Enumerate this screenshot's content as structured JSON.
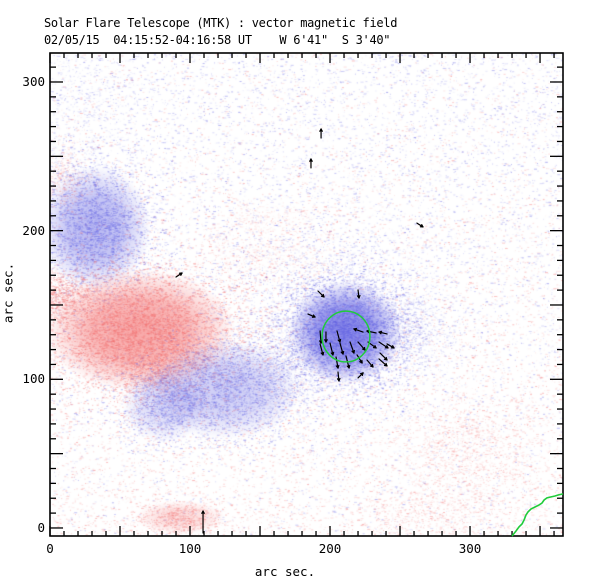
{
  "header": {
    "title": "Solar Flare Telescope (MTK) : vector magnetic field",
    "subtitle": "02/05/15  04:15:52-04:16:58 UT    W 6'41\"  S 3'40\""
  },
  "chart_data": {
    "type": "heatmap",
    "description": "Solar vector magnetogram: blue speckle = negative polarity flux, red speckle = positive polarity flux, black arrows = transverse field vectors, green circle = contour of interest, green line at lower right = solar limb",
    "title": "Solar Flare Telescope (MTK) : vector magnetic field",
    "xlabel": "arc sec.",
    "ylabel": "arc sec.",
    "xlim": [
      0,
      366.4
    ],
    "ylim": [
      -5.4,
      319.5
    ],
    "xticks": [
      0,
      100,
      200,
      300
    ],
    "yticks": [
      0,
      100,
      200,
      300
    ],
    "minor_tick_arcsec": 10,
    "major_tick_arcsec": 50,
    "grid": false,
    "legend": "none",
    "colors": {
      "negative_polarity_blue": "#5858e1",
      "positive_polarity_red": "#f25f5f",
      "contour_green": "#20cc3a",
      "vector_black": "#000000",
      "frame_black": "#000000",
      "background": "#ffffff"
    },
    "noise": {
      "blue_count": 14000,
      "red_count": 17000,
      "blue_tone_strong": "100,100,228",
      "blue_tone_light": "165,165,240",
      "red_tone_strong": "243,112,112",
      "red_tone_light": "250,175,175"
    },
    "polarity_blobs": [
      {
        "name": "blue-plage-northwest",
        "color": "blue",
        "x": 32,
        "y": 202,
        "sx": 21,
        "sy": 22,
        "n": 2600,
        "a": 0.5,
        "core": 0.42
      },
      {
        "name": "red-spot-main",
        "color": "red",
        "x": 64,
        "y": 133,
        "sx": 36,
        "sy": 21.5,
        "n": 5200,
        "a": 0.55,
        "core": 0.55
      },
      {
        "name": "red-arm-west",
        "color": "red",
        "x": 4,
        "y": 157,
        "sx": 14,
        "sy": 8,
        "n": 1100,
        "a": 0.45,
        "core": 0
      },
      {
        "name": "red-edge-west-upper",
        "color": "red",
        "x": 8,
        "y": 235,
        "sx": 9,
        "sy": 12,
        "n": 420,
        "a": 0.28,
        "core": 0
      },
      {
        "name": "red-tail-south",
        "color": "red",
        "x": 75,
        "y": 105,
        "sx": 18,
        "sy": 9.5,
        "n": 1000,
        "a": 0.32,
        "core": 0
      },
      {
        "name": "blue-region-south-central",
        "color": "blue",
        "x": 125,
        "y": 93,
        "sx": 28.5,
        "sy": 17.5,
        "n": 2200,
        "a": 0.45,
        "core": 0.3
      },
      {
        "name": "blue-region-south-central-2",
        "color": "blue",
        "x": 82,
        "y": 83,
        "sx": 16,
        "sy": 13.5,
        "n": 900,
        "a": 0.42,
        "core": 0.22
      },
      {
        "name": "blue-spot-core",
        "color": "blue",
        "x": 210.7,
        "y": 131.8,
        "sx": 21.4,
        "sy": 18.2,
        "n": 3400,
        "a": 0.6,
        "core": 0.72
      },
      {
        "name": "blue-spot-envelope",
        "color": "blue",
        "x": 205,
        "y": 142,
        "sx": 39,
        "sy": 28,
        "n": 2400,
        "a": 0.28,
        "core": 0
      },
      {
        "name": "blue-ext-east",
        "color": "blue",
        "x": 246,
        "y": 132,
        "sx": 20,
        "sy": 14,
        "n": 800,
        "a": 0.26,
        "core": 0
      },
      {
        "name": "blue-bridge-south",
        "color": "blue",
        "x": 164,
        "y": 105,
        "sx": 25,
        "sy": 14,
        "n": 900,
        "a": 0.28,
        "core": 0
      },
      {
        "name": "red-streak-central",
        "color": "red",
        "x": 154,
        "y": 184,
        "sx": 32,
        "sy": 9,
        "n": 520,
        "a": 0.2,
        "core": 0
      },
      {
        "name": "red-streak-central-2",
        "color": "red",
        "x": 156,
        "y": 208,
        "sx": 21,
        "sy": 6,
        "n": 300,
        "a": 0.16,
        "core": 0
      },
      {
        "name": "red-scatter-southeast",
        "color": "red",
        "x": 296,
        "y": 52,
        "sx": 27,
        "sy": 17,
        "n": 950,
        "a": 0.25,
        "core": 0
      },
      {
        "name": "red-patch-south",
        "color": "red",
        "x": 93,
        "y": 7,
        "sx": 17,
        "sy": 6,
        "n": 620,
        "a": 0.4,
        "core": 0.22
      },
      {
        "name": "red-band-south-east",
        "color": "red",
        "x": 275,
        "y": 9,
        "sx": 32,
        "sy": 9.5,
        "n": 550,
        "a": 0.25,
        "core": 0
      },
      {
        "name": "blue-corner-northwest",
        "color": "blue",
        "x": 21,
        "y": 281,
        "sx": 30,
        "sy": 27,
        "n": 650,
        "a": 0.18,
        "core": 0
      }
    ],
    "contour_circle": {
      "x": 211.4,
      "y": 128.8,
      "r": 17.1
    },
    "vectors": [
      [
        191.4,
        159.4,
        195.7,
        155.4
      ],
      [
        220.0,
        160.1,
        220.7,
        154.7
      ],
      [
        184.3,
        143.9,
        189.3,
        141.9
      ],
      [
        192.9,
        132.5,
        193.6,
        124.4
      ],
      [
        197.1,
        131.8,
        197.1,
        125.1
      ],
      [
        205.0,
        132.5,
        207.1,
        125.1
      ],
      [
        223.6,
        131.8,
        217.1,
        133.9
      ],
      [
        232.9,
        131.2,
        226.4,
        132.5
      ],
      [
        240.7,
        130.5,
        235.0,
        131.8
      ],
      [
        192.9,
        123.8,
        195.0,
        116.4
      ],
      [
        200.0,
        124.4,
        202.1,
        116.4
      ],
      [
        207.1,
        124.4,
        209.3,
        117.0
      ],
      [
        214.3,
        125.1,
        217.1,
        117.7
      ],
      [
        220.0,
        125.1,
        225.0,
        119.7
      ],
      [
        227.1,
        125.1,
        232.9,
        121.1
      ],
      [
        235.0,
        125.1,
        241.4,
        121.1
      ],
      [
        204.3,
        115.0,
        205.7,
        107.6
      ],
      [
        211.4,
        115.7,
        213.6,
        107.6
      ],
      [
        219.3,
        116.4,
        222.9,
        111.0
      ],
      [
        226.4,
        113.0,
        230.7,
        108.3
      ],
      [
        235.0,
        113.7,
        240.7,
        109.0
      ],
      [
        205.7,
        104.9,
        206.4,
        98.9
      ],
      [
        220.0,
        100.9,
        223.6,
        104.3
      ],
      [
        240.7,
        123.8,
        245.7,
        121.1
      ],
      [
        235.7,
        117.7,
        240.7,
        113.0
      ],
      [
        193.6,
        262.3,
        193.6,
        268.4
      ],
      [
        186.4,
        242.2,
        186.4,
        248.2
      ],
      [
        262.1,
        205.1,
        266.4,
        202.5
      ],
      [
        90.0,
        168.8,
        94.3,
        171.5
      ],
      [
        109.3,
        -3.4,
        109.3,
        11.4
      ]
    ],
    "limb_curve": [
      [
        330.0,
        -5.4
      ],
      [
        332.9,
        -2.0
      ],
      [
        335.0,
        0.7
      ],
      [
        337.1,
        2.7
      ],
      [
        338.6,
        5.4
      ],
      [
        340.0,
        8.7
      ],
      [
        341.4,
        10.8
      ],
      [
        343.6,
        12.8
      ],
      [
        346.4,
        14.1
      ],
      [
        349.3,
        15.5
      ],
      [
        351.4,
        16.8
      ],
      [
        352.9,
        18.8
      ],
      [
        355.0,
        20.2
      ],
      [
        357.9,
        20.9
      ],
      [
        360.7,
        21.5
      ],
      [
        362.9,
        22.2
      ],
      [
        366.4,
        22.9
      ]
    ]
  }
}
